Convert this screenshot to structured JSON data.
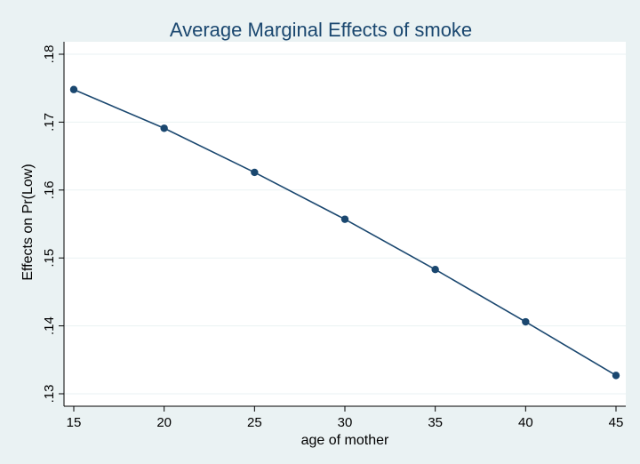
{
  "chart_data": {
    "type": "line",
    "title": "Average Marginal Effects of smoke",
    "xlabel": "age of mother",
    "ylabel": "Effects on Pr(Low)",
    "x": [
      15,
      20,
      25,
      30,
      35,
      40,
      45
    ],
    "series": [
      {
        "values": [
          0.1748,
          0.1691,
          0.1626,
          0.1557,
          0.1483,
          0.1406,
          0.1327
        ]
      }
    ],
    "xlim": [
      15,
      45
    ],
    "ylim": [
      0.13,
      0.18
    ],
    "xticks": [
      15,
      20,
      25,
      30,
      35,
      40,
      45
    ],
    "xtick_labels": [
      "15",
      "20",
      "25",
      "30",
      "35",
      "40",
      "45"
    ],
    "yticks": [
      0.13,
      0.14,
      0.15,
      0.16,
      0.17,
      0.18
    ],
    "ytick_labels": [
      ".13",
      ".14",
      ".15",
      ".16",
      ".17",
      ".18"
    ],
    "grid": true,
    "colors": {
      "background": "#eaf2f3",
      "plot_background": "#ffffff",
      "series": "#1a476f",
      "title": "#1a476f",
      "grid": "#eaf2f3",
      "axis": "#000000"
    }
  }
}
